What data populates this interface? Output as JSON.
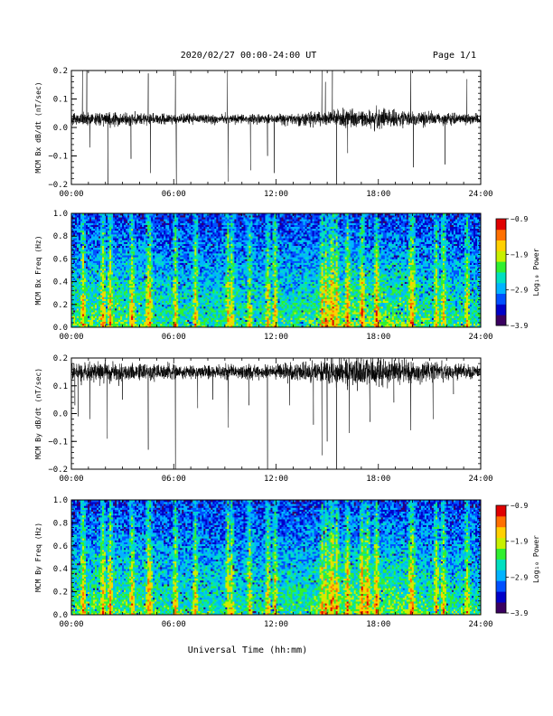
{
  "header": {
    "title": "2020/02/27  00:00-24:00 UT",
    "page": "Page 1/1"
  },
  "xaxis_label": "Universal Time (hh:mm)",
  "colors": {
    "trace": "#000000",
    "colorbar": [
      "#3a0060",
      "#0000c8",
      "#0050ff",
      "#00b4ff",
      "#00e0c0",
      "#30f030",
      "#c8f000",
      "#ffd000",
      "#ff7000",
      "#e00000"
    ]
  },
  "colorbar_label": "Log₁₀ Power",
  "chart_data": [
    {
      "type": "line",
      "ylabel": "MCM Bx dB/dt (nT/sec)",
      "xlim": [
        0,
        24
      ],
      "ylim": [
        -0.2,
        0.2
      ],
      "xticks": [
        "00:00",
        "06:00",
        "12:00",
        "18:00",
        "24:00"
      ],
      "yticks": [
        {
          "v": 0.2,
          "label": "0.2"
        },
        {
          "v": 0.1,
          "label": "0.1"
        },
        {
          "v": 0.0,
          "label": "0.0"
        },
        {
          "v": -0.1,
          "label": "−0.1"
        },
        {
          "v": -0.2,
          "label": "−0.2"
        }
      ],
      "baseline": 0.03,
      "noise": 0.012,
      "spikes": [
        {
          "t": 0.65,
          "v": 0.2
        },
        {
          "t": 0.9,
          "v": 0.2
        },
        {
          "t": 1.1,
          "v": -0.07
        },
        {
          "t": 2.15,
          "v": -0.2
        },
        {
          "t": 3.5,
          "v": -0.11
        },
        {
          "t": 4.5,
          "v": 0.19
        },
        {
          "t": 4.65,
          "v": -0.16
        },
        {
          "t": 6.1,
          "v": 0.2
        },
        {
          "t": 6.15,
          "v": -0.2
        },
        {
          "t": 9.15,
          "v": 0.2
        },
        {
          "t": 9.2,
          "v": -0.19
        },
        {
          "t": 10.5,
          "v": -0.15
        },
        {
          "t": 11.5,
          "v": -0.1
        },
        {
          "t": 11.9,
          "v": -0.16
        },
        {
          "t": 14.7,
          "v": 0.2
        },
        {
          "t": 14.9,
          "v": 0.16
        },
        {
          "t": 15.3,
          "v": 0.2
        },
        {
          "t": 15.55,
          "v": -0.2
        },
        {
          "t": 16.2,
          "v": -0.09
        },
        {
          "t": 19.9,
          "v": 0.2
        },
        {
          "t": 20.05,
          "v": -0.14
        },
        {
          "t": 21.9,
          "v": -0.13
        },
        {
          "t": 23.2,
          "v": 0.17
        }
      ]
    },
    {
      "type": "heatmap",
      "ylabel": "MCM Bx Freq (Hz)",
      "xlim": [
        0,
        24
      ],
      "ylim": [
        0,
        1.0
      ],
      "xticks": [
        "00:00",
        "06:00",
        "12:00",
        "18:00",
        "24:00"
      ],
      "yticks": [
        {
          "v": 1.0,
          "label": "1.0"
        },
        {
          "v": 0.8,
          "label": "0.8"
        },
        {
          "v": 0.6,
          "label": "0.6"
        },
        {
          "v": 0.4,
          "label": "0.4"
        },
        {
          "v": 0.2,
          "label": "0.2"
        },
        {
          "v": 0.0,
          "label": "0.0"
        }
      ],
      "colorbar_range": [
        -3.9,
        -0.9
      ],
      "colorbar_ticks": [
        {
          "v": -0.9,
          "label": "−0.9"
        },
        {
          "v": -1.9,
          "label": "−1.9"
        },
        {
          "v": -2.9,
          "label": "−2.9"
        },
        {
          "v": -3.9,
          "label": "−3.9"
        }
      ],
      "active_times": [
        0.65,
        1.8,
        2.2,
        3.5,
        4.5,
        4.6,
        6.1,
        7.3,
        9.15,
        9.4,
        10.5,
        11.5,
        11.9,
        14.7,
        14.9,
        15.2,
        15.4,
        15.55,
        16.2,
        17.1,
        17.9,
        19.9,
        20.1,
        21.4,
        21.9,
        23.2
      ],
      "seed": 7
    },
    {
      "type": "line",
      "ylabel": "MCM By dB/dt (nT/sec)",
      "xlim": [
        0,
        24
      ],
      "ylim": [
        -0.2,
        0.2
      ],
      "xticks": [
        "00:00",
        "06:00",
        "12:00",
        "18:00",
        "24:00"
      ],
      "yticks": [
        {
          "v": 0.2,
          "label": "0.2"
        },
        {
          "v": 0.1,
          "label": "0.1"
        },
        {
          "v": 0.0,
          "label": "0.0"
        },
        {
          "v": -0.1,
          "label": "−0.1"
        },
        {
          "v": -0.2,
          "label": "−0.2"
        }
      ],
      "baseline": 0.15,
      "noise": 0.018,
      "spikes": [
        {
          "t": 0.2,
          "v": 0.03
        },
        {
          "t": 0.4,
          "v": -0.01
        },
        {
          "t": 1.1,
          "v": -0.02
        },
        {
          "t": 2.1,
          "v": -0.09
        },
        {
          "t": 3.0,
          "v": 0.05
        },
        {
          "t": 4.5,
          "v": -0.13
        },
        {
          "t": 6.1,
          "v": -0.2
        },
        {
          "t": 7.4,
          "v": 0.02
        },
        {
          "t": 8.3,
          "v": 0.05
        },
        {
          "t": 9.2,
          "v": -0.05
        },
        {
          "t": 10.4,
          "v": 0.03
        },
        {
          "t": 11.5,
          "v": -0.2
        },
        {
          "t": 12.8,
          "v": 0.03
        },
        {
          "t": 14.2,
          "v": -0.04
        },
        {
          "t": 14.7,
          "v": -0.15
        },
        {
          "t": 15.0,
          "v": -0.1
        },
        {
          "t": 15.55,
          "v": -0.2
        },
        {
          "t": 16.3,
          "v": -0.07
        },
        {
          "t": 17.5,
          "v": -0.03
        },
        {
          "t": 18.9,
          "v": 0.04
        },
        {
          "t": 19.9,
          "v": -0.06
        },
        {
          "t": 21.2,
          "v": -0.02
        },
        {
          "t": 22.4,
          "v": 0.07
        }
      ]
    },
    {
      "type": "heatmap",
      "ylabel": "MCM By Freq (Hz)",
      "xlim": [
        0,
        24
      ],
      "ylim": [
        0,
        1.0
      ],
      "xticks": [
        "00:00",
        "06:00",
        "12:00",
        "18:00",
        "24:00"
      ],
      "yticks": [
        {
          "v": 1.0,
          "label": "1.0"
        },
        {
          "v": 0.8,
          "label": "0.8"
        },
        {
          "v": 0.6,
          "label": "0.6"
        },
        {
          "v": 0.4,
          "label": "0.4"
        },
        {
          "v": 0.2,
          "label": "0.2"
        },
        {
          "v": 0.0,
          "label": "0.0"
        }
      ],
      "colorbar_range": [
        -3.9,
        -0.9
      ],
      "colorbar_ticks": [
        {
          "v": -0.9,
          "label": "−0.9"
        },
        {
          "v": -1.9,
          "label": "−1.9"
        },
        {
          "v": -2.9,
          "label": "−2.9"
        },
        {
          "v": -3.9,
          "label": "−3.9"
        }
      ],
      "active_times": [
        0.65,
        1.8,
        2.2,
        3.5,
        4.5,
        4.6,
        6.1,
        7.3,
        9.15,
        9.4,
        10.5,
        11.5,
        11.9,
        14.7,
        14.9,
        15.2,
        15.4,
        15.55,
        16.2,
        17.1,
        17.4,
        17.9,
        19.9,
        20.1,
        21.4,
        21.9,
        23.2
      ],
      "seed": 13
    }
  ]
}
